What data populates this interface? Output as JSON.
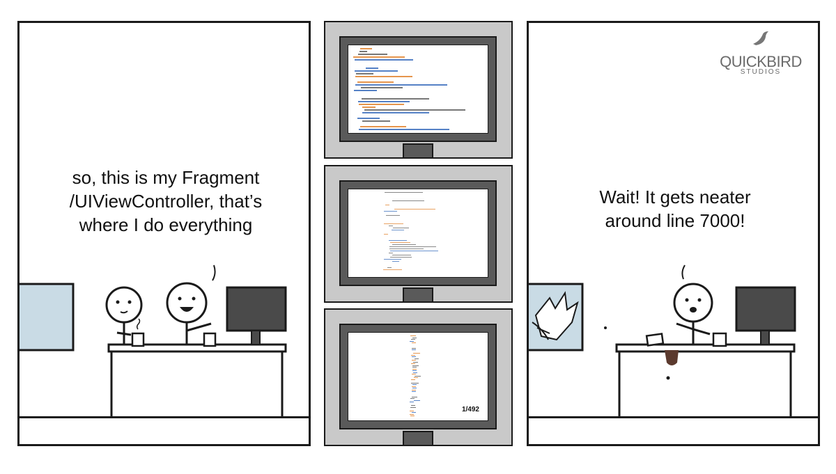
{
  "panel_left": {
    "speech": "so, this is my Fragment /UIViewController, that’s where I do everything"
  },
  "panel_right": {
    "speech": "Wait! It gets neater around line 7000!"
  },
  "logo": {
    "name": "QUICKBIRD",
    "sub": "STUDIOS"
  },
  "monitors": {
    "page_counter": "1/492"
  },
  "colors": {
    "ink": "#1a1a1a",
    "frame": "#c9c9c9",
    "bezel": "#5a5a5a",
    "code_orange": "#e07a1f",
    "code_blue": "#2a62b8",
    "window": "#c9dbe5",
    "coffee": "#5b3a2e"
  }
}
